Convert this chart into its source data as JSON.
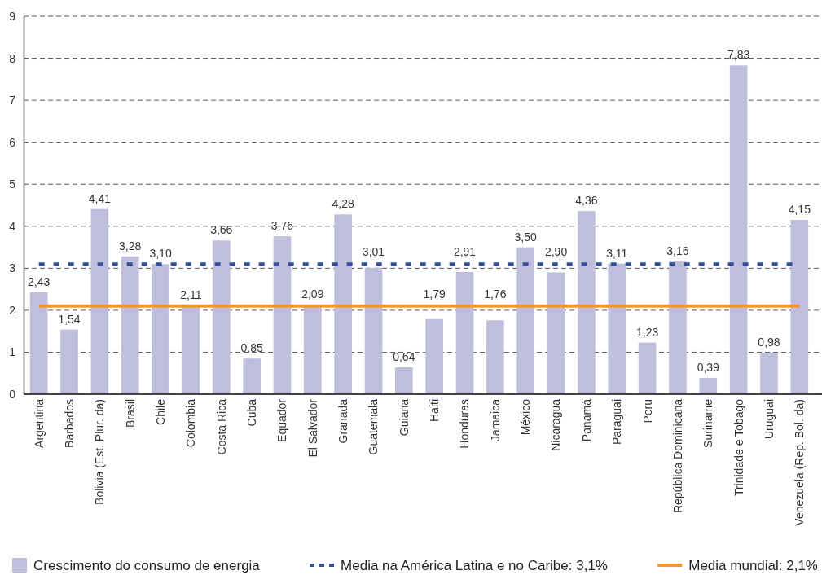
{
  "chart_data": {
    "type": "bar",
    "categories": [
      "Argentina",
      "Barbados",
      "Bolivia (Est. Plur. da)",
      "Brasil",
      "Chile",
      "Colombia",
      "Costa Rica",
      "Cuba",
      "Equador",
      "El Salvador",
      "Granada",
      "Guatemala",
      "Guiana",
      "Haiti",
      "Honduras",
      "Jamaica",
      "México",
      "Nicaragua",
      "Panamá",
      "Paraguai",
      "Peru",
      "República Dominicana",
      "Suriname",
      "Trinidade e Tobago",
      "Uruguai",
      "Venezuela (Rep. Bol. da)"
    ],
    "series": [
      {
        "name": "Crescimento do consumo de energia",
        "color": "#bfbfdd",
        "values": [
          2.43,
          1.54,
          4.41,
          3.28,
          3.1,
          2.11,
          3.66,
          0.85,
          3.76,
          2.09,
          4.28,
          3.01,
          0.64,
          1.79,
          2.91,
          1.76,
          3.5,
          2.9,
          4.36,
          3.11,
          1.23,
          3.16,
          0.39,
          7.83,
          0.98,
          4.15
        ],
        "value_labels": [
          "2,43",
          "1,54",
          "4,41",
          "3,28",
          "3,10",
          "2,11",
          "3,66",
          "0,85",
          "3,76",
          "2,09",
          "4,28",
          "3,01",
          "0,64",
          "1,79",
          "2,91",
          "1,76",
          "3,50",
          "2,90",
          "4,36",
          "3,11",
          "1,23",
          "3,16",
          "0,39",
          "7,83",
          "0,98",
          "4,15"
        ]
      }
    ],
    "ylim": [
      0,
      9
    ],
    "yticks": [
      0,
      1,
      2,
      3,
      4,
      5,
      6,
      7,
      8,
      9
    ],
    "grid": "y",
    "legend": "bottom",
    "ref_lines": [
      {
        "axis": "y",
        "value": 3.1,
        "label": "Media na América Latina e no Caribe: 3,1%",
        "color": "#2f4f9f",
        "line_style": "dotted"
      },
      {
        "axis": "y",
        "value": 2.1,
        "label": "Media mundial: 2,1%",
        "color": "#f7962b",
        "line_style": "solid"
      }
    ]
  }
}
